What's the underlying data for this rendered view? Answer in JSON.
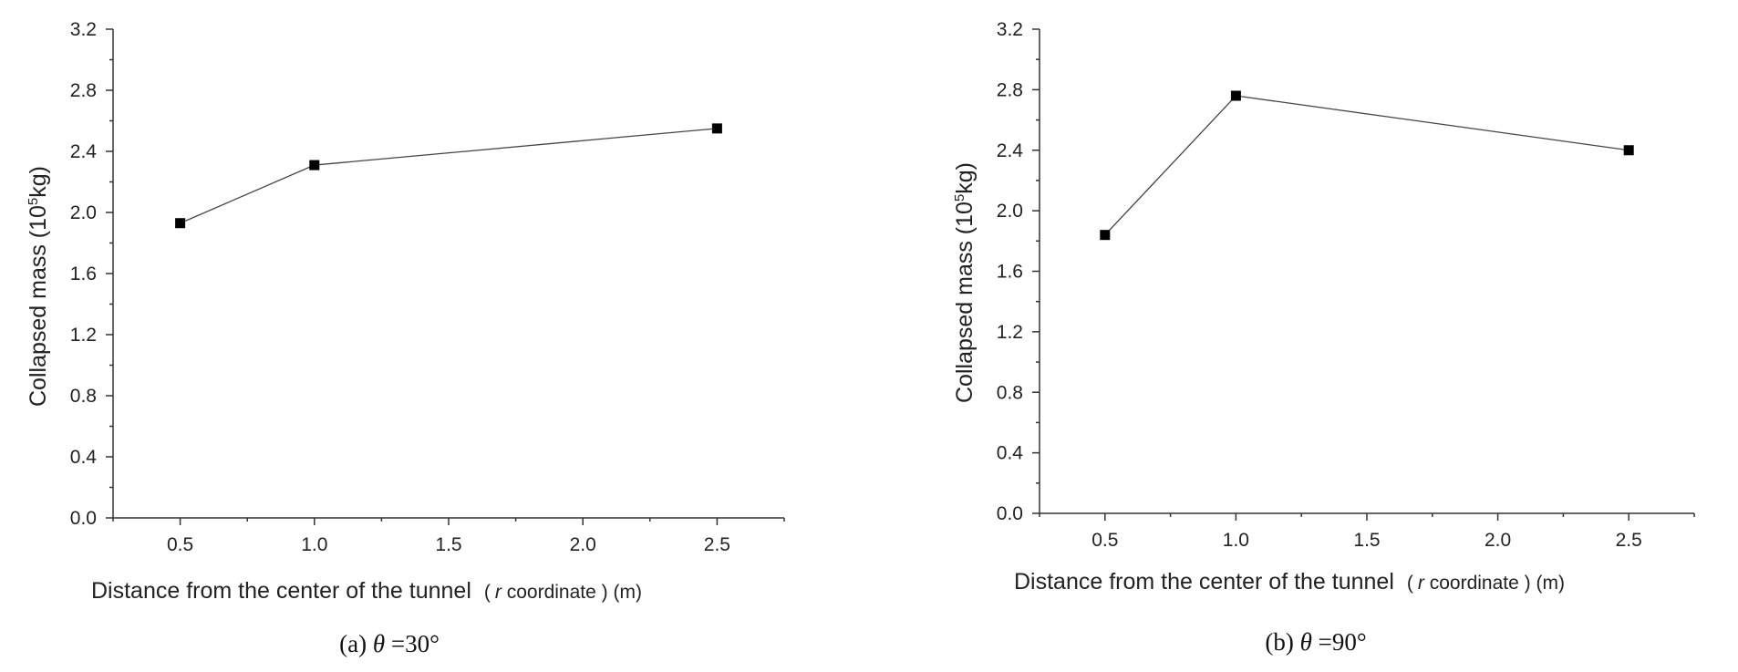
{
  "chart_data": [
    {
      "type": "line",
      "caption": {
        "prefix": "(a) ",
        "symbol": "θ",
        "rest": " =30°"
      },
      "ylabel": {
        "main": "Collapsed mass (10",
        "sup": "5",
        "tail": "kg)"
      },
      "xlabel": {
        "main": "Distance from the center of the tunnel",
        "paren_open": "(",
        "italic": "r",
        "coord": " coordinate",
        "paren_close": " )",
        "unit": " (m)"
      },
      "xlim": [
        0.25,
        2.75
      ],
      "ylim": [
        0,
        3.2
      ],
      "xticks": [
        "0.5",
        "1.0",
        "1.5",
        "2.0",
        "2.5"
      ],
      "yticks": [
        "0.0",
        "0.4",
        "0.8",
        "1.2",
        "1.6",
        "2.0",
        "2.4",
        "2.8",
        "3.2"
      ],
      "series": [
        {
          "x": [
            0.5,
            1.0,
            2.5
          ],
          "y": [
            1.93,
            2.31,
            2.55
          ]
        }
      ]
    },
    {
      "type": "line",
      "caption": {
        "prefix": "(b) ",
        "symbol": "θ",
        "rest": " =90°"
      },
      "ylabel": {
        "main": "Collapsed mass (10",
        "sup": "5",
        "tail": "kg)"
      },
      "xlabel": {
        "main": "Distance from the center of the tunnel",
        "paren_open": "(",
        "italic": "r",
        "coord": " coordinate",
        "paren_close": " )",
        "unit": " (m)"
      },
      "xlim": [
        0.25,
        2.75
      ],
      "ylim": [
        0,
        3.2
      ],
      "xticks": [
        "0.5",
        "1.0",
        "1.5",
        "2.0",
        "2.5"
      ],
      "yticks": [
        "0.0",
        "0.4",
        "0.8",
        "1.2",
        "1.6",
        "2.0",
        "2.4",
        "2.8",
        "3.2"
      ],
      "series": [
        {
          "x": [
            0.5,
            1.0,
            2.5
          ],
          "y": [
            1.84,
            2.76,
            2.4
          ]
        }
      ]
    }
  ]
}
